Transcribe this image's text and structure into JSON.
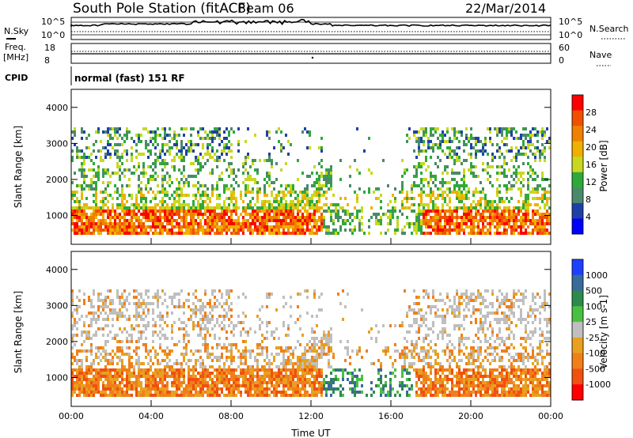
{
  "header": {
    "title": "South Pole Station (fitACF)",
    "beam": "Beam 06",
    "date": "22/Mar/2014"
  },
  "sky_panel": {
    "left_label": "N.Sky",
    "left_ticks": [
      "10^5",
      "10^0"
    ],
    "right_label": "N.Search",
    "right_ticks": [
      "10^5",
      "10^0"
    ]
  },
  "freq_panel": {
    "left_label_1": "Freq.",
    "left_label_2": "[MHz]",
    "left_ticks": [
      "18",
      "8"
    ],
    "right_label": "Nave",
    "right_ticks": [
      "60",
      "0"
    ]
  },
  "cpid": {
    "label": "CPID",
    "text": "normal (fast) 151 RF"
  },
  "x_axis": {
    "label": "Time UT",
    "ticks": [
      "00:00",
      "04:00",
      "08:00",
      "12:00",
      "16:00",
      "20:00",
      "00:00"
    ]
  },
  "colors": {
    "power_scale": [
      "#0000ff",
      "#1f3fa8",
      "#4a8a6a",
      "#2fa93a",
      "#c8d820",
      "#f0b000",
      "#f08000",
      "#f05000",
      "#ff0000"
    ],
    "velocity_scale": [
      "#1f3fff",
      "#3a6a9a",
      "#2e8a4a",
      "#4ac040",
      "#bfbfbf",
      "#e8a020",
      "#f07f1a",
      "#f05010",
      "#ff0000"
    ]
  },
  "chart_data": [
    {
      "type": "heatmap",
      "panel": "power",
      "ylabel": "Slant Range [km]",
      "yticks": [
        "1000",
        "2000",
        "3000",
        "4000"
      ],
      "ylim": [
        200,
        4500
      ],
      "xlim_hours": [
        0,
        24
      ],
      "colorbar_label": "Power [dB]",
      "colorbar_ticks": [
        "28",
        "24",
        "20",
        "16",
        "12",
        "8",
        "4"
      ],
      "colorbar_range": [
        0,
        32
      ]
    },
    {
      "type": "heatmap",
      "panel": "velocity",
      "ylabel": "Slant Range [km]",
      "yticks": [
        "1000",
        "2000",
        "3000",
        "4000"
      ],
      "ylim": [
        200,
        4500
      ],
      "xlim_hours": [
        0,
        24
      ],
      "colorbar_label": "Velocity [m s-1]",
      "colorbar_ticks": [
        "1000",
        "500",
        "100",
        "25",
        "-25",
        "-100",
        "-500",
        "-1000"
      ]
    }
  ]
}
